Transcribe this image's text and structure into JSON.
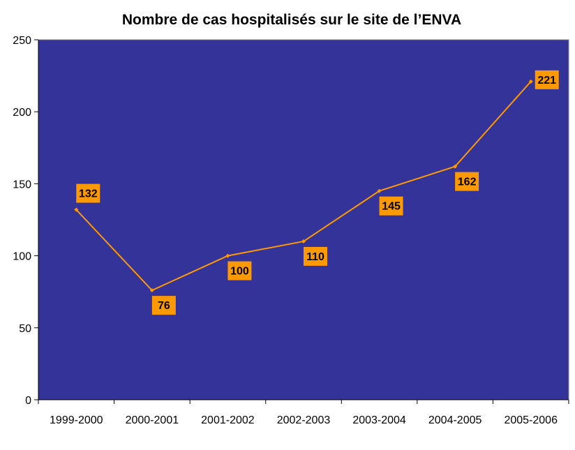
{
  "chart_data": {
    "type": "line",
    "title": "Nombre de cas hospitalisés sur le site de l’ENVA",
    "categories": [
      "1999-2000",
      "2000-2001",
      "2001-2002",
      "2002-2003",
      "2003-2004",
      "2004-2005",
      "2005-2006"
    ],
    "series": [
      {
        "values": [
          132,
          76,
          100,
          110,
          145,
          162,
          221
        ]
      }
    ],
    "ylim": [
      0,
      250
    ],
    "yticks": [
      0,
      50,
      100,
      150,
      200,
      250
    ],
    "xlabel": "",
    "ylabel": "",
    "grid": false,
    "legend": "none",
    "data_labels": true,
    "colors": {
      "plot_background": "#333399",
      "line": "#FF9900",
      "label_background": "#FF9900"
    }
  }
}
